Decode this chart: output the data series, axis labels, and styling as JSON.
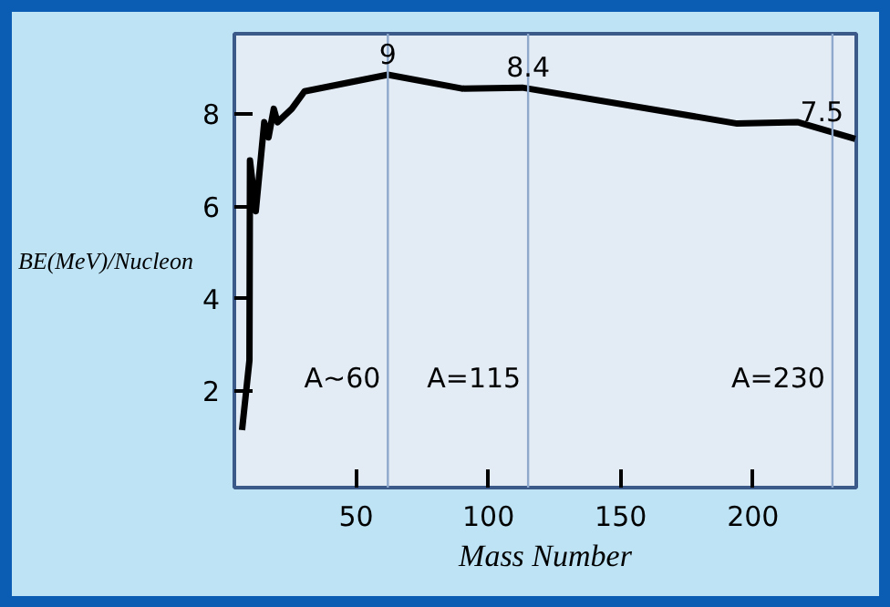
{
  "chart_data": {
    "type": "line",
    "xlabel": "Mass Number",
    "ylabel": "BE(MeV)/Nucleon",
    "x": [
      6.9,
      9.7,
      9.9,
      12.1,
      15.3,
      16.9,
      18.9,
      20.3,
      25.7,
      30.5,
      62,
      90,
      112.8,
      194,
      217,
      238.6
    ],
    "values": [
      1.15,
      2.66,
      7.0,
      5.9,
      7.83,
      7.5,
      8.12,
      7.83,
      8.12,
      8.5,
      8.86,
      8.56,
      8.58,
      7.8,
      7.83,
      7.47
    ],
    "color": "#000000",
    "line_style": "solid",
    "xlim": [
      4,
      239
    ],
    "ylim": [
      -0.1,
      9.75
    ],
    "xticks": [
      50,
      100,
      150,
      200
    ],
    "yticks": [
      2,
      4,
      6,
      8
    ],
    "grid": false,
    "annotations": [
      {
        "text": "9",
        "x": 62,
        "y": 8.86
      },
      {
        "text": "8.4",
        "x": 115,
        "y": 8.58
      },
      {
        "text": "7.5",
        "x": 226,
        "y": 7.62
      }
    ],
    "ref_lines": [
      {
        "axis": "x",
        "value": 62,
        "label": "A~60",
        "color": "#8fa9cc"
      },
      {
        "axis": "x",
        "value": 115,
        "label": "A=115",
        "color": "#8fa9cc"
      },
      {
        "axis": "x",
        "value": 230,
        "label": "A=230",
        "color": "#8fa9cc"
      }
    ]
  }
}
